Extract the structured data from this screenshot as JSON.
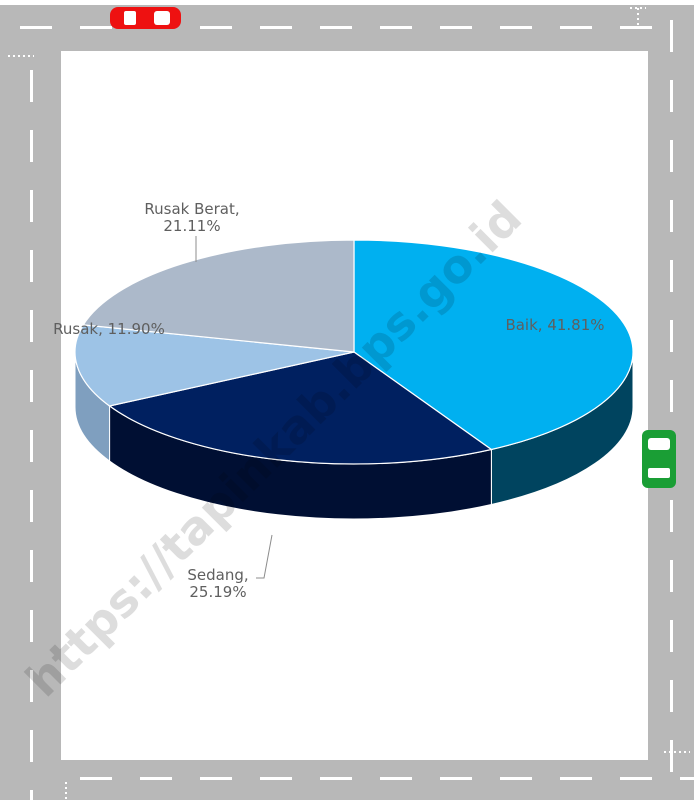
{
  "chart_data": {
    "type": "pie",
    "style": "3d",
    "slices": [
      {
        "name": "Baik",
        "value": 41.81,
        "display": "41.81%",
        "color": "#00b0f0",
        "side_color": "#00445f"
      },
      {
        "name": "Sedang",
        "value": 25.19,
        "display": "25.19%",
        "color": "#002060",
        "side_color": "#000f33"
      },
      {
        "name": "Rusak",
        "value": 11.9,
        "display": "11.90%",
        "color": "#9dc3e6",
        "side_color": "#7f9fbf"
      },
      {
        "name": "Rusak Berat",
        "value": 21.11,
        "display": "21.11%",
        "color": "#acb9ca",
        "side_color": "#7d8a9a"
      }
    ],
    "data_labels": {
      "Baik": [
        "Baik, 41.81%"
      ],
      "Sedang": [
        "Sedang,",
        "25.19%"
      ],
      "Rusak": [
        "Rusak, 11.90%"
      ],
      "Rusak Berat": [
        "Rusak Berat,",
        "21.11%"
      ]
    }
  },
  "watermark": "https://tapinkab.bps.go.id",
  "decor": {
    "road_color": "#b8b8b8",
    "dash_color": "#ffffff",
    "red_car_color": "#ee1111",
    "green_car_color": "#1a9e35"
  }
}
